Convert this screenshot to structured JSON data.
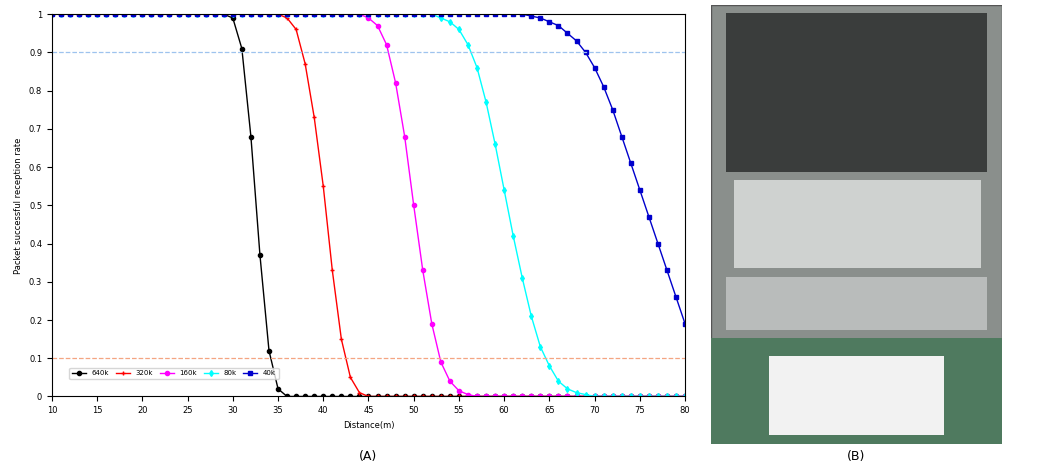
{
  "chart_data": {
    "type": "line",
    "x_label": "Distance(m)",
    "y_label": "Packet successful reception rate",
    "caption": "(A)",
    "xlim": [
      10,
      80
    ],
    "ylim": [
      0,
      1
    ],
    "xticks": [
      10,
      15,
      20,
      25,
      30,
      35,
      40,
      45,
      50,
      55,
      60,
      65,
      70,
      75,
      80
    ],
    "yticks": [
      0,
      0.1,
      0.2,
      0.3,
      0.4,
      0.5,
      0.6,
      0.7,
      0.8,
      0.9,
      1
    ],
    "grid": false,
    "legend": "lower left",
    "x": [
      10,
      11,
      12,
      13,
      14,
      15,
      16,
      17,
      18,
      19,
      20,
      21,
      22,
      23,
      24,
      25,
      26,
      27,
      28,
      29,
      30,
      31,
      32,
      33,
      34,
      35,
      36,
      37,
      38,
      39,
      40,
      41,
      42,
      43,
      44,
      45,
      46,
      47,
      48,
      49,
      50,
      51,
      52,
      53,
      54,
      55,
      56,
      57,
      58,
      59,
      60,
      61,
      62,
      63,
      64,
      65,
      66,
      67,
      68,
      69,
      70,
      71,
      72,
      73,
      74,
      75,
      76,
      77,
      78,
      79,
      80
    ],
    "series": [
      {
        "name": "640k",
        "color": "#000000",
        "marker": "circle",
        "values": [
          1,
          1,
          1,
          1,
          1,
          1,
          1,
          1,
          1,
          1,
          1,
          1,
          1,
          1,
          1,
          1,
          1,
          1,
          1,
          1,
          0.99,
          0.91,
          0.68,
          0.37,
          0.12,
          0.02,
          0,
          0,
          0,
          0,
          0,
          0,
          0,
          0,
          0,
          0,
          0,
          0,
          0,
          0,
          0,
          0,
          0,
          0,
          0,
          0,
          0,
          0,
          0,
          0,
          0,
          0,
          0,
          0,
          0,
          0,
          0,
          0,
          0,
          0,
          0,
          0,
          0,
          0,
          0,
          0,
          0,
          0,
          0,
          0,
          0
        ]
      },
      {
        "name": "320k",
        "color": "#ff0000",
        "marker": "plus",
        "values": [
          1,
          1,
          1,
          1,
          1,
          1,
          1,
          1,
          1,
          1,
          1,
          1,
          1,
          1,
          1,
          1,
          1,
          1,
          1,
          1,
          1,
          1,
          1,
          1,
          1,
          1,
          0.99,
          0.96,
          0.87,
          0.73,
          0.55,
          0.33,
          0.15,
          0.05,
          0.01,
          0,
          0,
          0,
          0,
          0,
          0,
          0,
          0,
          0,
          0,
          0,
          0,
          0,
          0,
          0,
          0,
          0,
          0,
          0,
          0,
          0,
          0,
          0,
          0,
          0,
          0,
          0,
          0,
          0,
          0,
          0,
          0,
          0,
          0,
          0,
          0
        ]
      },
      {
        "name": "160k",
        "color": "#ff00ff",
        "marker": "circle",
        "values": [
          1,
          1,
          1,
          1,
          1,
          1,
          1,
          1,
          1,
          1,
          1,
          1,
          1,
          1,
          1,
          1,
          1,
          1,
          1,
          1,
          1,
          1,
          1,
          1,
          1,
          1,
          1,
          1,
          1,
          1,
          1,
          1,
          1,
          1,
          1,
          0.99,
          0.97,
          0.92,
          0.82,
          0.68,
          0.5,
          0.33,
          0.19,
          0.09,
          0.04,
          0.015,
          0.005,
          0,
          0,
          0,
          0,
          0,
          0,
          0,
          0,
          0,
          0,
          0,
          0,
          0,
          0,
          0,
          0,
          0,
          0,
          0,
          0,
          0,
          0,
          0,
          0
        ]
      },
      {
        "name": "80k",
        "color": "#00ffff",
        "marker": "diamond",
        "values": [
          1,
          1,
          1,
          1,
          1,
          1,
          1,
          1,
          1,
          1,
          1,
          1,
          1,
          1,
          1,
          1,
          1,
          1,
          1,
          1,
          1,
          1,
          1,
          1,
          1,
          1,
          1,
          1,
          1,
          1,
          1,
          1,
          1,
          1,
          1,
          1,
          1,
          1,
          1,
          1,
          1,
          1,
          1,
          0.99,
          0.98,
          0.96,
          0.92,
          0.86,
          0.77,
          0.66,
          0.54,
          0.42,
          0.31,
          0.21,
          0.13,
          0.08,
          0.04,
          0.02,
          0.01,
          0.005,
          0,
          0,
          0,
          0,
          0,
          0,
          0,
          0,
          0,
          0,
          0
        ]
      },
      {
        "name": "40k",
        "color": "#0000cc",
        "marker": "square",
        "values": [
          1,
          1,
          1,
          1,
          1,
          1,
          1,
          1,
          1,
          1,
          1,
          1,
          1,
          1,
          1,
          1,
          1,
          1,
          1,
          1,
          1,
          1,
          1,
          1,
          1,
          1,
          1,
          1,
          1,
          1,
          1,
          1,
          1,
          1,
          1,
          1,
          1,
          1,
          1,
          1,
          1,
          1,
          1,
          1,
          1,
          1,
          1,
          1,
          1,
          1,
          1,
          1,
          1,
          0.995,
          0.99,
          0.98,
          0.97,
          0.95,
          0.93,
          0.9,
          0.86,
          0.81,
          0.75,
          0.68,
          0.61,
          0.54,
          0.47,
          0.4,
          0.33,
          0.26,
          0.19
        ]
      }
    ],
    "reference_lines": [
      {
        "value": 0.9,
        "color": "#9ec3ee",
        "line_style": "dashed"
      },
      {
        "value": 0.1,
        "color": "#f4a582",
        "line_style": "dashed"
      }
    ]
  },
  "photo": {
    "caption": "(B)"
  }
}
